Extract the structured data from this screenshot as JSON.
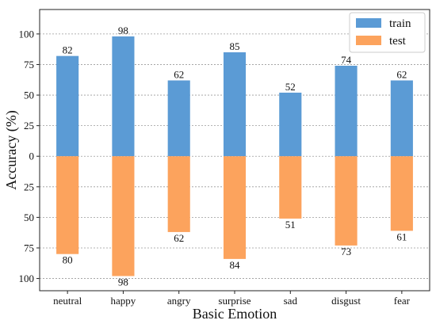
{
  "chart_data": {
    "type": "bar",
    "categories": [
      "neutral",
      "happy",
      "angry",
      "surprise",
      "sad",
      "disgust",
      "fear"
    ],
    "series": [
      {
        "name": "train",
        "values": [
          82,
          98,
          62,
          85,
          52,
          74,
          62
        ],
        "color": "#5b9bd5",
        "direction": "up"
      },
      {
        "name": "test",
        "values": [
          80,
          98,
          62,
          84,
          51,
          73,
          61
        ],
        "color": "#fca35d",
        "direction": "down"
      }
    ],
    "xlabel": "Basic Emotion",
    "ylabel": "Accuracy (%)",
    "ylim": [
      -110,
      120
    ],
    "yticks": [
      100,
      75,
      50,
      25,
      0,
      25,
      50,
      75,
      100
    ],
    "ytick_values": [
      100,
      75,
      50,
      25,
      0,
      -25,
      -50,
      -75,
      -100
    ],
    "grid": true,
    "legend_position": "top-right"
  }
}
